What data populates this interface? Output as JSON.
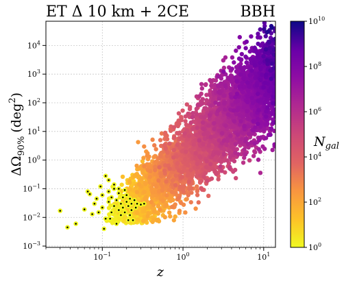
{
  "chart_data": {
    "type": "scatter",
    "title_left": "ET Δ 10 km + 2CE",
    "title_right": "BBH",
    "xlabel": "z",
    "ylabel": "ΔΩ",
    "ylabel_sub": "90%",
    "ylabel_unit": "(deg",
    "ylabel_unit_exp": "2",
    "ylabel_unit_close": ")",
    "xscale": "log",
    "yscale": "log",
    "xlim": [
      0.02,
      14
    ],
    "ylim": [
      0.0009,
      70000
    ],
    "grid": true,
    "x_ticks": [
      {
        "base": "10",
        "exp": "−1",
        "value": 0.1
      },
      {
        "base": "10",
        "exp": "0",
        "value": 1
      },
      {
        "base": "10",
        "exp": "1",
        "value": 10
      }
    ],
    "y_ticks": [
      {
        "base": "10",
        "exp": "−3",
        "value": 0.001
      },
      {
        "base": "10",
        "exp": "−2",
        "value": 0.01
      },
      {
        "base": "10",
        "exp": "−1",
        "value": 0.1
      },
      {
        "base": "10",
        "exp": "0",
        "value": 1
      },
      {
        "base": "10",
        "exp": "1",
        "value": 10
      },
      {
        "base": "10",
        "exp": "2",
        "value": 100
      },
      {
        "base": "10",
        "exp": "3",
        "value": 1000
      },
      {
        "base": "10",
        "exp": "4",
        "value": 10000
      }
    ],
    "colorbar": {
      "label": "N",
      "label_sub": "gal",
      "scale": "log",
      "range": [
        1,
        10000000000
      ],
      "colormap": "plasma",
      "ticks": [
        {
          "base": "10",
          "exp": "0",
          "value": 1
        },
        {
          "base": "10",
          "exp": "2",
          "value": 100
        },
        {
          "base": "10",
          "exp": "4",
          "value": 10000
        },
        {
          "base": "10",
          "exp": "6",
          "value": 1000000
        },
        {
          "base": "10",
          "exp": "8",
          "value": 100000000
        },
        {
          "base": "10",
          "exp": "10",
          "value": 10000000000
        }
      ]
    },
    "marked_points": [
      {
        "x": 0.03,
        "y": 0.017
      },
      {
        "x": 0.037,
        "y": 0.0045
      },
      {
        "x": 0.047,
        "y": 0.006
      },
      {
        "x": 0.06,
        "y": 0.019
      },
      {
        "x": 0.066,
        "y": 0.08
      },
      {
        "x": 0.07,
        "y": 0.065
      },
      {
        "x": 0.075,
        "y": 0.013
      },
      {
        "x": 0.08,
        "y": 0.03
      },
      {
        "x": 0.085,
        "y": 0.045
      },
      {
        "x": 0.09,
        "y": 0.015
      },
      {
        "x": 0.095,
        "y": 0.12
      },
      {
        "x": 0.1,
        "y": 0.022
      },
      {
        "x": 0.1,
        "y": 0.06
      },
      {
        "x": 0.105,
        "y": 0.004
      },
      {
        "x": 0.11,
        "y": 0.009
      },
      {
        "x": 0.11,
        "y": 0.28
      },
      {
        "x": 0.12,
        "y": 0.035
      },
      {
        "x": 0.12,
        "y": 0.08
      },
      {
        "x": 0.12,
        "y": 0.2
      },
      {
        "x": 0.13,
        "y": 0.015
      },
      {
        "x": 0.13,
        "y": 0.05
      },
      {
        "x": 0.14,
        "y": 0.025
      },
      {
        "x": 0.14,
        "y": 0.1
      },
      {
        "x": 0.15,
        "y": 0.006
      },
      {
        "x": 0.15,
        "y": 0.04
      },
      {
        "x": 0.16,
        "y": 0.018
      },
      {
        "x": 0.16,
        "y": 0.07
      },
      {
        "x": 0.17,
        "y": 0.03
      },
      {
        "x": 0.17,
        "y": 0.012
      },
      {
        "x": 0.18,
        "y": 0.05
      },
      {
        "x": 0.18,
        "y": 0.022
      },
      {
        "x": 0.19,
        "y": 0.09
      },
      {
        "x": 0.19,
        "y": 0.015
      },
      {
        "x": 0.2,
        "y": 0.035
      },
      {
        "x": 0.2,
        "y": 0.06
      },
      {
        "x": 0.21,
        "y": 0.025
      },
      {
        "x": 0.21,
        "y": 0.008
      },
      {
        "x": 0.22,
        "y": 0.045
      },
      {
        "x": 0.22,
        "y": 0.012
      },
      {
        "x": 0.23,
        "y": 0.03
      },
      {
        "x": 0.23,
        "y": 0.018
      },
      {
        "x": 0.24,
        "y": 0.008
      },
      {
        "x": 0.25,
        "y": 0.04
      },
      {
        "x": 0.26,
        "y": 0.022
      },
      {
        "x": 0.27,
        "y": 0.03
      },
      {
        "x": 0.3,
        "y": 0.028
      },
      {
        "x": 0.33,
        "y": 0.03
      },
      {
        "x": 0.14,
        "y": 0.14
      },
      {
        "x": 0.16,
        "y": 0.1
      },
      {
        "x": 0.125,
        "y": 0.009
      }
    ]
  }
}
